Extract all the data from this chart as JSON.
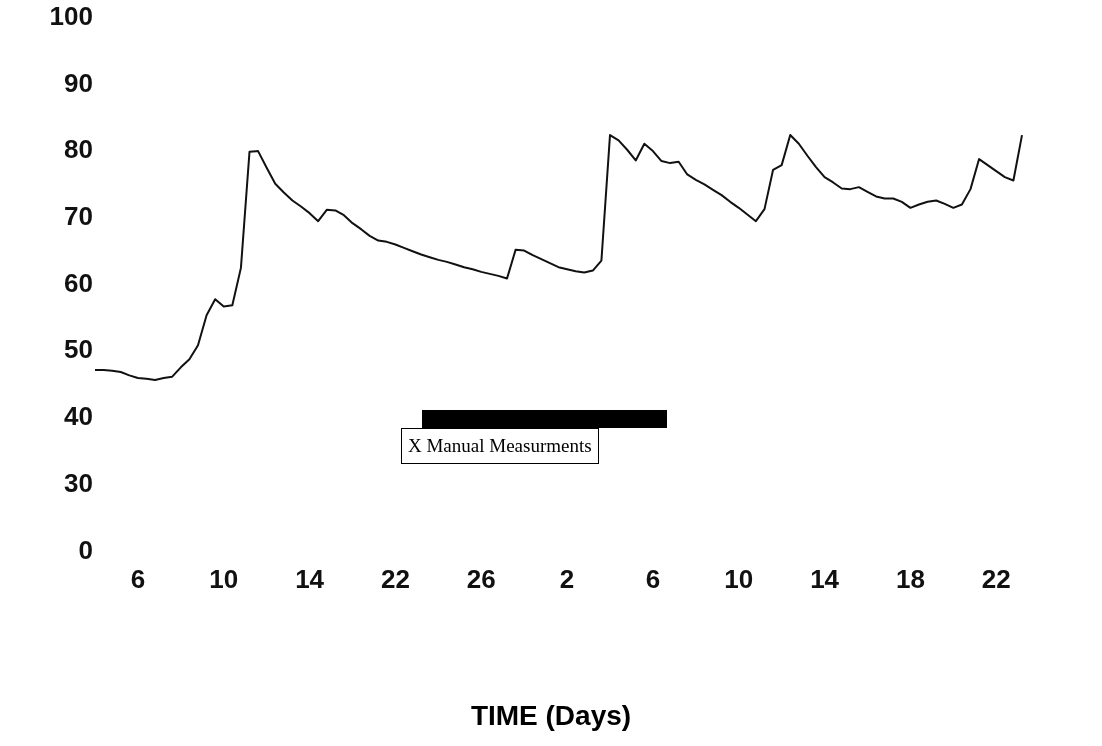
{
  "chart_data": {
    "type": "line",
    "xlabel": "TIME (Days)",
    "annotations": [
      "X Manual Measurments",
      "0"
    ],
    "categories": [
      null,
      null,
      null,
      null,
      null,
      "6",
      null,
      null,
      null,
      null,
      null,
      null,
      null,
      null,
      null,
      "10",
      null,
      null,
      null,
      null,
      null,
      null,
      null,
      null,
      null,
      "14",
      null,
      null,
      null,
      null,
      null,
      null,
      null,
      null,
      null,
      "22",
      null,
      null,
      null,
      null,
      null,
      null,
      null,
      null,
      null,
      "26",
      null,
      null,
      null,
      null,
      null,
      null,
      null,
      null,
      null,
      "2",
      null,
      null,
      null,
      null,
      null,
      null,
      null,
      null,
      null,
      "6",
      null,
      null,
      null,
      null,
      null,
      null,
      null,
      null,
      null,
      "10",
      null,
      null,
      null,
      null,
      null,
      null,
      null,
      null,
      null,
      "14",
      null,
      null,
      null,
      null,
      null,
      null,
      null,
      null,
      null,
      "18",
      null,
      null,
      null,
      null,
      null,
      null,
      null,
      null,
      null,
      "22",
      null,
      null,
      null
    ],
    "ylim": [
      30,
      100
    ],
    "yticks": [
      30,
      40,
      50,
      60,
      70,
      80,
      90,
      100
    ],
    "series": [
      {
        "color": "#111111",
        "values": [
          47.2,
          47.2,
          47.1,
          46.9,
          46.4,
          46.0,
          45.9,
          45.7,
          46.0,
          46.2,
          47.6,
          48.8,
          50.9,
          55.4,
          57.8,
          56.7,
          56.9,
          62.5,
          79.9,
          80.0,
          77.5,
          75.1,
          73.8,
          72.6,
          71.7,
          70.7,
          69.5,
          71.2,
          71.1,
          70.4,
          69.2,
          68.3,
          67.3,
          66.6,
          66.4,
          66.0,
          65.5,
          65.0,
          64.5,
          64.1,
          63.7,
          63.4,
          63.0,
          62.6,
          62.3,
          61.9,
          61.6,
          61.3,
          60.9,
          65.2,
          65.1,
          64.4,
          63.8,
          63.2,
          62.6,
          62.3,
          62.0,
          61.8,
          62.1,
          63.6,
          82.4,
          81.6,
          80.2,
          78.6,
          81.1,
          80.0,
          78.5,
          78.2,
          78.4,
          76.5,
          75.7,
          75.0,
          74.2,
          73.4,
          72.4,
          71.5,
          70.5,
          69.5,
          71.3,
          77.2,
          77.9,
          82.4,
          81.1,
          79.3,
          77.6,
          76.1,
          75.3,
          74.4,
          74.3,
          74.6,
          73.9,
          73.2,
          72.9,
          72.9,
          72.4,
          71.5,
          72.0,
          72.4,
          72.6,
          72.1,
          71.5,
          72.0,
          74.3,
          78.8,
          77.9,
          77.0,
          76.1,
          75.6,
          82.4
        ]
      }
    ]
  }
}
